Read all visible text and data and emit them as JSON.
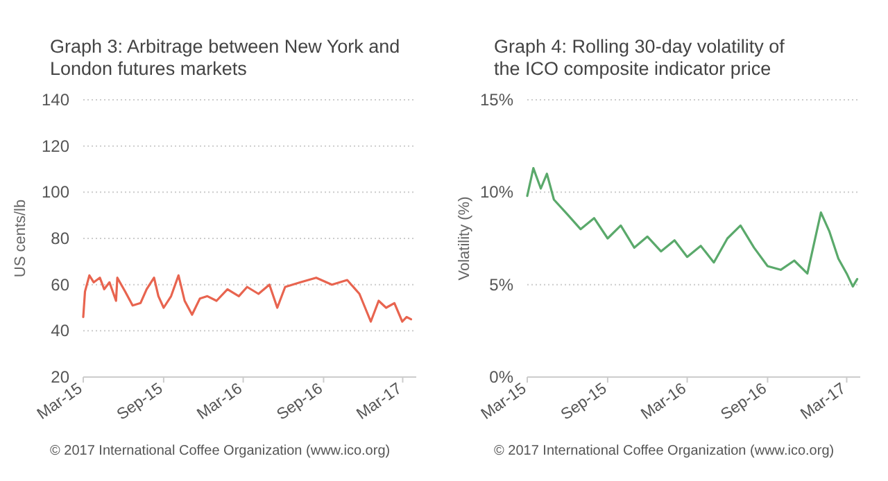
{
  "chart_data": [
    {
      "type": "line",
      "title": "Graph 3:   Arbitrage between New York and London futures markets",
      "ylabel": "US cents/lb",
      "annotations": [
        "© 2017 International Coffee Organization (www.ico.org)"
      ],
      "grid": "y",
      "marker": "none",
      "line_style": "solid",
      "xlim": [
        "2015-03-01",
        "2017-04-01"
      ],
      "xticks": [
        {
          "value": "2015-03-01",
          "label": "Mar-15"
        },
        {
          "value": "2015-09-01",
          "label": "Sep-15"
        },
        {
          "value": "2016-03-01",
          "label": "Mar-16"
        },
        {
          "value": "2016-09-01",
          "label": "Sep-16"
        },
        {
          "value": "2017-03-01",
          "label": "Mar-17"
        }
      ],
      "ylim": [
        20,
        140
      ],
      "yticks": [
        20,
        40,
        60,
        80,
        100,
        120,
        140
      ],
      "series": [
        {
          "color": "#e8644f",
          "x": [
            "2015-03-01",
            "2015-03-05",
            "2015-03-15",
            "2015-03-25",
            "2015-04-08",
            "2015-04-18",
            "2015-04-30",
            "2015-05-15",
            "2015-05-18",
            "2015-06-05",
            "2015-06-22",
            "2015-07-10",
            "2015-07-24",
            "2015-08-10",
            "2015-08-20",
            "2015-09-01",
            "2015-09-18",
            "2015-10-05",
            "2015-10-19",
            "2015-11-05",
            "2015-11-23",
            "2015-12-10",
            "2015-12-31",
            "2016-01-25",
            "2016-02-20",
            "2016-03-10",
            "2016-04-05",
            "2016-04-30",
            "2016-05-18",
            "2016-06-05",
            "2016-07-10",
            "2016-08-15",
            "2016-09-20",
            "2016-10-25",
            "2016-11-22",
            "2016-12-18",
            "2017-01-05",
            "2017-01-22",
            "2017-02-10",
            "2017-02-28",
            "2017-03-10",
            "2017-03-20"
          ],
          "values": [
            46,
            57,
            64,
            61,
            63,
            58,
            61,
            53,
            63,
            57,
            51,
            52,
            58,
            63,
            55,
            50,
            55,
            64,
            53,
            47,
            54,
            55,
            53,
            58,
            55,
            59,
            56,
            60,
            50,
            59,
            61,
            63,
            60,
            62,
            56,
            44,
            53,
            50,
            52,
            44,
            46,
            45
          ]
        }
      ]
    },
    {
      "type": "line",
      "title": "Graph 4:   Rolling 30-day volatility of the ICO composite indicator price",
      "ylabel": "Volatility (%)",
      "annotations": [
        "© 2017 International Coffee Organization (www.ico.org)"
      ],
      "grid": "y",
      "marker": "none",
      "line_style": "solid",
      "xlim": [
        "2015-03-01",
        "2017-04-01"
      ],
      "xticks": [
        {
          "value": "2015-03-01",
          "label": "Mar-15"
        },
        {
          "value": "2015-09-01",
          "label": "Sep-15"
        },
        {
          "value": "2016-03-01",
          "label": "Mar-16"
        },
        {
          "value": "2016-09-01",
          "label": "Sep-16"
        },
        {
          "value": "2017-03-01",
          "label": "Mar-17"
        }
      ],
      "ylim": [
        0,
        15
      ],
      "yticks": [
        {
          "value": 0,
          "label": "0%"
        },
        {
          "value": 5,
          "label": "5%"
        },
        {
          "value": 10,
          "label": "10%"
        },
        {
          "value": 15,
          "label": "15%"
        }
      ],
      "series": [
        {
          "color": "#5aa96b",
          "x": [
            "2015-03-01",
            "2015-03-15",
            "2015-04-01",
            "2015-04-15",
            "2015-05-01",
            "2015-06-01",
            "2015-07-01",
            "2015-08-01",
            "2015-09-01",
            "2015-10-01",
            "2015-11-01",
            "2015-12-01",
            "2016-01-01",
            "2016-02-01",
            "2016-03-01",
            "2016-04-01",
            "2016-05-01",
            "2016-06-01",
            "2016-07-01",
            "2016-08-01",
            "2016-09-01",
            "2016-10-01",
            "2016-11-01",
            "2016-12-01",
            "2017-01-01",
            "2017-01-20",
            "2017-02-10",
            "2017-03-01",
            "2017-03-15",
            "2017-03-25"
          ],
          "values": [
            9.8,
            11.3,
            10.2,
            11,
            9.6,
            8.8,
            8,
            8.6,
            7.5,
            8.2,
            7,
            7.6,
            6.8,
            7.4,
            6.5,
            7.1,
            6.2,
            7.5,
            8.2,
            7,
            6,
            5.8,
            6.3,
            5.6,
            8.9,
            7.9,
            6.4,
            5.6,
            4.9,
            5.3
          ]
        }
      ]
    }
  ]
}
